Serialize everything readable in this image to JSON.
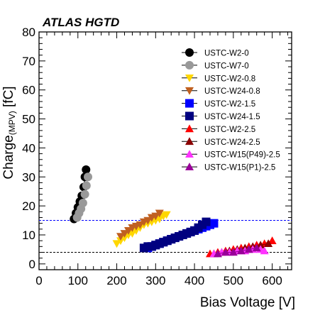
{
  "heading": "ATLAS HGTD",
  "chart_data": {
    "type": "scatter",
    "xlabel": "Bias Voltage [V]",
    "ylabel_main": "Charge",
    "ylabel_sub": "(MPV)",
    "ylabel_unit": " [fC]",
    "xlim": [
      0,
      650
    ],
    "ylim": [
      -2,
      80
    ],
    "xticks": [
      "0",
      "100",
      "200",
      "300",
      "400",
      "500",
      "600"
    ],
    "yticks": [
      "0",
      "10",
      "20",
      "30",
      "40",
      "50",
      "60",
      "70",
      "80"
    ],
    "legend_position": "top-right",
    "reference_lines": [
      {
        "y": 15,
        "color": "#0000ff",
        "style": "dashed"
      },
      {
        "y": 4,
        "color": "#000000",
        "style": "dashed"
      }
    ],
    "series": [
      {
        "name": "USTC-W2-0",
        "color": "#000000",
        "marker": "circle",
        "x": [
          90,
          95,
          100,
          105,
          110,
          115,
          118,
          121
        ],
        "y": [
          15.5,
          17.5,
          19.5,
          21.5,
          23.5,
          26.5,
          30,
          32.5
        ]
      },
      {
        "name": "USTC-W7-0",
        "color": "#999999",
        "marker": "circle",
        "x": [
          98,
          103,
          108,
          113,
          118,
          122,
          126
        ],
        "y": [
          16,
          17.5,
          19,
          21,
          24,
          27,
          30
        ]
      },
      {
        "name": "USTC-W2-0.8",
        "color": "#ffd700",
        "marker": "triangle-down",
        "x": [
          200,
          210,
          220,
          230,
          240,
          250,
          260,
          270,
          280,
          290,
          300,
          310,
          320,
          328
        ],
        "y": [
          7,
          8,
          9,
          10,
          10.5,
          11.5,
          12.5,
          13.5,
          14,
          14.5,
          15,
          15.5,
          16.5,
          17
        ]
      },
      {
        "name": "USTC-W24-0.8",
        "color": "#c06020",
        "marker": "triangle-down",
        "x": [
          210,
          220,
          230,
          240,
          250,
          260,
          270,
          280,
          290,
          300,
          310
        ],
        "y": [
          9.5,
          10.5,
          11.5,
          12.5,
          13,
          13.5,
          14.5,
          15,
          16,
          16.5,
          17.5
        ]
      },
      {
        "name": "USTC-W2-1.5",
        "color": "#0000ff",
        "marker": "square",
        "x": [
          280,
          290,
          300,
          310,
          320,
          330,
          340,
          350,
          360,
          370,
          380,
          390,
          400,
          410,
          420,
          430,
          440,
          450
        ],
        "y": [
          5.5,
          6,
          6.5,
          7,
          7.5,
          8,
          8.5,
          9,
          9.5,
          10,
          10.5,
          11,
          11.5,
          12,
          12.5,
          13,
          13.5,
          14
        ]
      },
      {
        "name": "USTC-W24-1.5",
        "color": "#000080",
        "marker": "square",
        "x": [
          270,
          280,
          290,
          300,
          310,
          320,
          330,
          340,
          350,
          360,
          370,
          380,
          390,
          400,
          410,
          420,
          430
        ],
        "y": [
          5.5,
          6,
          6,
          6.5,
          7,
          7.5,
          8,
          8.5,
          9,
          9.5,
          10,
          10.5,
          11,
          11.5,
          12.5,
          13.5,
          14.5
        ]
      },
      {
        "name": "USTC-W2-2.5",
        "color": "#ff0000",
        "marker": "triangle-up",
        "x": [
          440,
          460,
          480,
          500,
          520,
          540,
          560,
          580,
          600
        ],
        "y": [
          3.5,
          4,
          4.5,
          5,
          5.5,
          6,
          6.5,
          7,
          8
        ]
      },
      {
        "name": "USTC-W24-2.5",
        "color": "#8b0000",
        "marker": "triangle-up",
        "x": [
          450,
          470,
          490,
          510,
          530,
          550,
          570,
          590
        ],
        "y": [
          3.5,
          4,
          4.5,
          5,
          5.5,
          6,
          6.5,
          7
        ]
      },
      {
        "name": "USTC-W15(P49)-2.5",
        "color": "#ff33ff",
        "marker": "triangle-up",
        "x": [
          450,
          470,
          490,
          510,
          530,
          550,
          570,
          580
        ],
        "y": [
          3.5,
          4,
          4,
          4.5,
          4.5,
          5,
          5,
          4.5
        ]
      },
      {
        "name": "USTC-W15(P1)-2.5",
        "color": "#990099",
        "marker": "triangle-up",
        "x": [
          460,
          480,
          500,
          520,
          540,
          560
        ],
        "y": [
          3.5,
          4,
          4,
          4.5,
          5,
          5.5
        ]
      }
    ]
  }
}
